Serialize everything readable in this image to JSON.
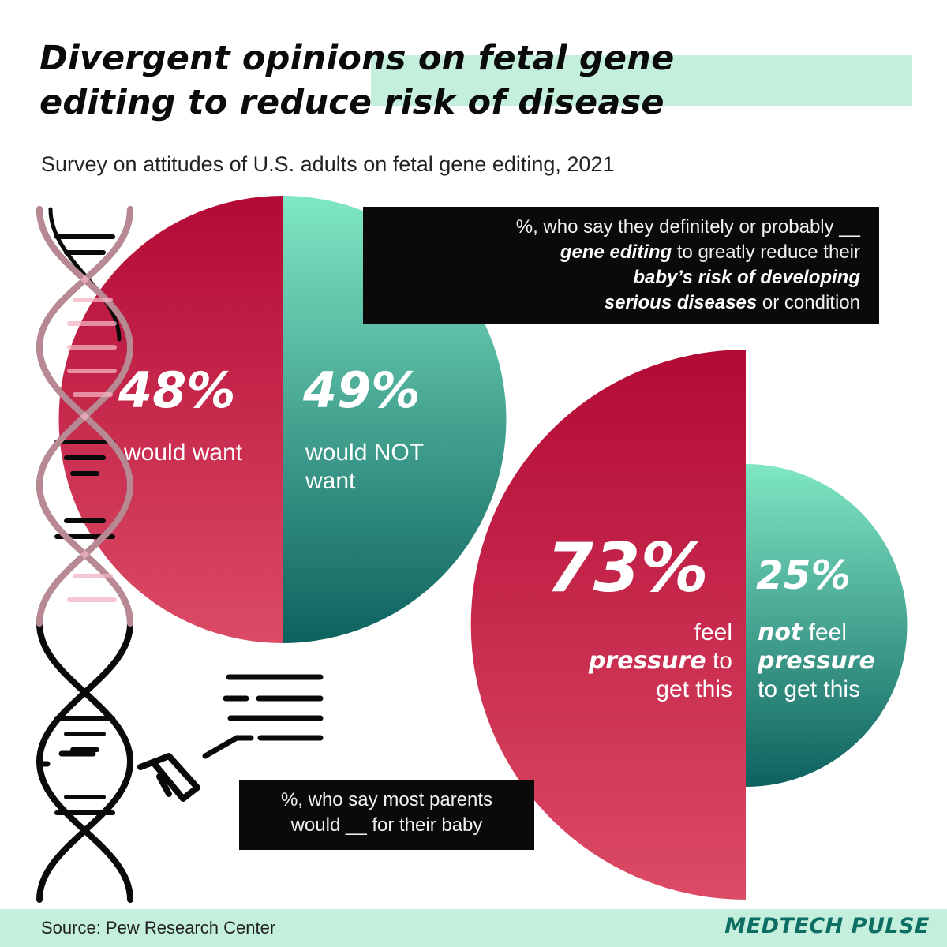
{
  "title": {
    "line1": "Divergent opinions on fetal gene",
    "line2": "editing to reduce risk of disease"
  },
  "subtitle": "Survey on attitudes of U.S. adults on fetal gene editing, 2021",
  "question1": {
    "part1": "%, who say they definitely or probably __",
    "bold1": "gene editing",
    "part2": " to greatly reduce their",
    "bold2": "baby’s risk of developing",
    "bold3": "serious diseases",
    "part3": " or condition"
  },
  "question2": {
    "line1": "%, who say most parents",
    "line2": "would __ for their baby"
  },
  "labels": {
    "want": "would want",
    "not_want_1": "would NOT",
    "not_want_2": "want",
    "pressure_feel": "feel",
    "pressure_word": "pressure",
    "pressure_to": " to",
    "pressure_get": "get this",
    "not_word": "not",
    "not_feel": " feel",
    "not_pressure": "pressure",
    "not_get": "to get this"
  },
  "source": "Source: Pew Research Center",
  "brand": "MEDTECH PULSE",
  "colors": {
    "red_top": "#b30a35",
    "red_bottom": "#dc4b66",
    "teal_top": "#7fe7c4",
    "teal_bottom": "#0d615e",
    "accent_band": "#c4efdc",
    "brand": "#0d6e63"
  },
  "chart_data": [
    {
      "type": "pie",
      "categories": [
        "would want",
        "would NOT want"
      ],
      "values": [
        48,
        49
      ],
      "value_labels": [
        "48%",
        "49%"
      ],
      "unit": "%"
    },
    {
      "type": "pie",
      "categories": [
        "feel pressure to get this",
        "not feel pressure to get this"
      ],
      "values": [
        73,
        25
      ],
      "value_labels": [
        "73%",
        "25%"
      ],
      "unit": "%"
    }
  ]
}
